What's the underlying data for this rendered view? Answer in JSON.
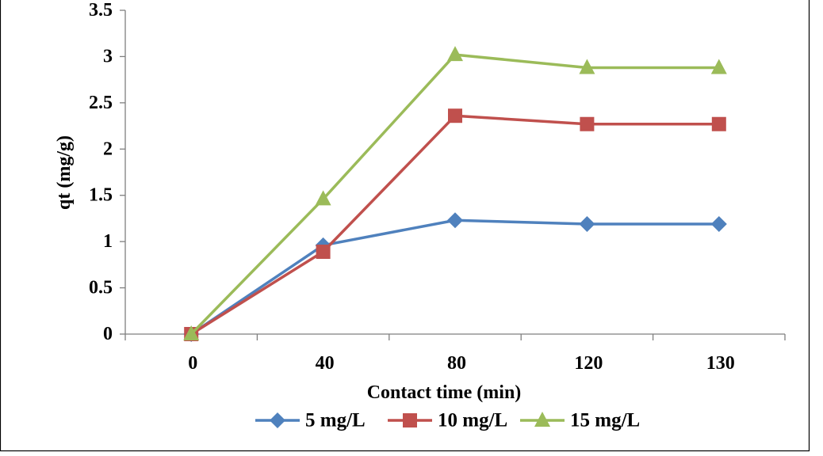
{
  "chart_data": {
    "type": "line",
    "categories": [
      "0",
      "40",
      "80",
      "120",
      "130"
    ],
    "series": [
      {
        "name": "5 mg/L",
        "values": [
          0,
          0.96,
          1.23,
          1.19,
          1.19
        ],
        "color": "#4F81BD",
        "marker": "diamond"
      },
      {
        "name": "10 mg/L",
        "values": [
          0,
          0.89,
          2.36,
          2.27,
          2.27
        ],
        "color": "#C0504D",
        "marker": "square"
      },
      {
        "name": "15 mg/L",
        "values": [
          0,
          1.46,
          3.02,
          2.88,
          2.88
        ],
        "color": "#9BBB59",
        "marker": "triangle"
      }
    ],
    "xlabel": "Contact time (min)",
    "ylabel": "qt (mg/g)",
    "ylim": [
      0,
      3.5
    ],
    "yticks": [
      "0",
      "0.5",
      "1",
      "1.5",
      "2",
      "2.5",
      "3",
      "3.5"
    ],
    "grid": false,
    "legend": "bottom"
  }
}
